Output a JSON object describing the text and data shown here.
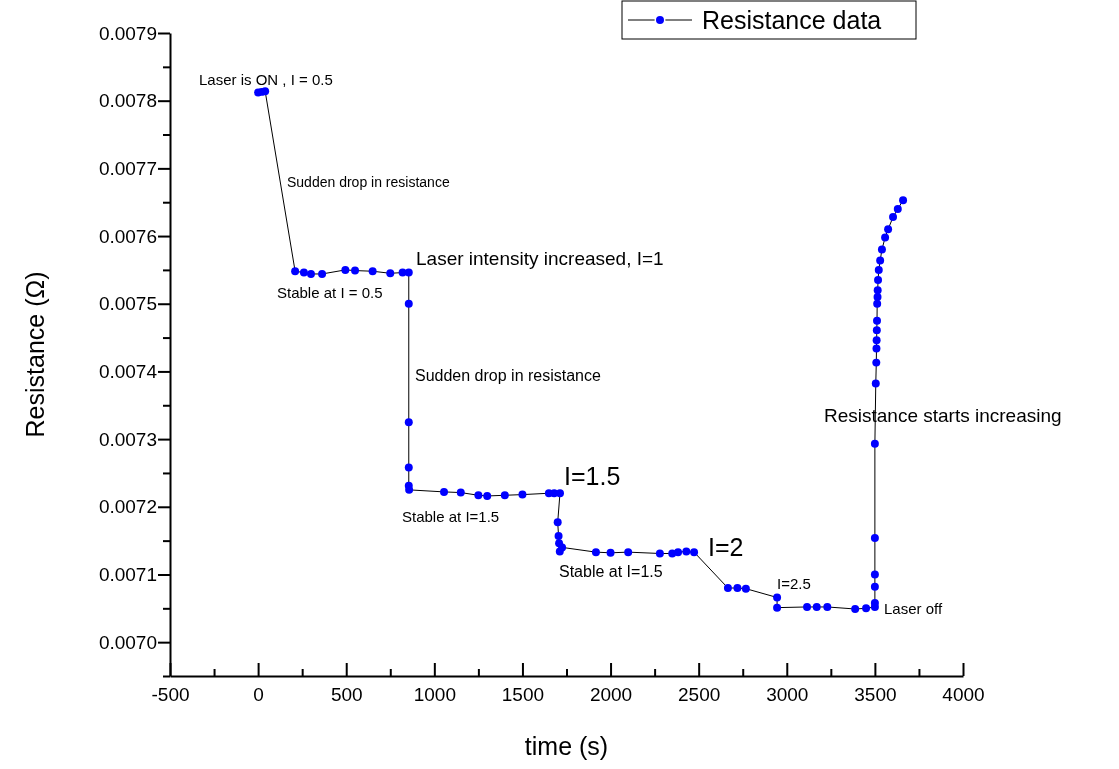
{
  "chart_data": {
    "type": "line",
    "xlabel": "time (s)",
    "ylabel": "Resistance (Ω)",
    "xlim": [
      -500,
      4000
    ],
    "ylim": [
      0.00695,
      0.0079
    ],
    "xticks": [
      -500,
      {
        "value": -250,
        "label": null
      },
      0,
      {
        "value": 250,
        "label": null
      },
      500,
      {
        "value": 750,
        "label": null
      },
      1000,
      {
        "value": 1250,
        "label": null
      },
      1500,
      {
        "value": 1750,
        "label": null
      },
      2000,
      {
        "value": 2250,
        "label": null
      },
      2500,
      {
        "value": 2750,
        "label": null
      },
      3000,
      {
        "value": 3250,
        "label": null
      },
      3500,
      {
        "value": 3750,
        "label": null
      },
      4000
    ],
    "yticks": [
      {
        "value": 0.00695,
        "label": null
      },
      {
        "value": 0.007,
        "label": "0.0070"
      },
      {
        "value": 0.00705,
        "label": null
      },
      0.0071,
      {
        "value": 0.00715,
        "label": null
      },
      0.0072,
      {
        "value": 0.00725,
        "label": null
      },
      0.0073,
      {
        "value": 0.00735,
        "label": null
      },
      0.0074,
      {
        "value": 0.00745,
        "label": null
      },
      0.0075,
      {
        "value": 0.00755,
        "label": null
      },
      0.0076,
      {
        "value": 0.00765,
        "label": null
      },
      0.0077,
      {
        "value": 0.00775,
        "label": null
      },
      0.0078,
      {
        "value": 0.00785,
        "label": null
      },
      0.0079
    ],
    "marker": "circle",
    "line_style": "solid",
    "legend": "top right",
    "grid": false,
    "series": [
      {
        "name": "Resistance data",
        "color": "#0000ff",
        "x": [
          0,
          20,
          40,
          210,
          260,
          300,
          363,
          495,
          550,
          650,
          750,
          820,
          855,
          855,
          855,
          855,
          855,
          857,
          1055,
          1150,
          1250,
          1300,
          1400,
          1500,
          1650,
          1680,
          1713,
          1700,
          1705,
          1708,
          1712,
          1725,
          1917,
          2000,
          2100,
          2280,
          2350,
          2383,
          2430,
          2474,
          2666,
          2720,
          2768,
          2945,
          2945,
          3115,
          3170,
          3230,
          3388,
          3450,
          3500,
          3500,
          3500,
          3500,
          3500,
          3500,
          3505,
          3508,
          3509,
          3510,
          3511,
          3512,
          3513,
          3515,
          3516,
          3518,
          3522,
          3530,
          3540,
          3558,
          3575,
          3603,
          3630,
          3660
        ],
        "values": [
          0.007812,
          0.007813,
          0.007814,
          0.007548,
          0.007546,
          0.007544,
          0.007544,
          0.00755,
          0.007549,
          0.007548,
          0.007545,
          0.007546,
          0.007546,
          0.0075,
          0.007325,
          0.007258,
          0.007231,
          0.007225,
          0.007222,
          0.007221,
          0.007217,
          0.007216,
          0.007217,
          0.007218,
          0.00722,
          0.00722,
          0.00722,
          0.007177,
          0.007157,
          0.007146,
          0.007134,
          0.00714,
          0.007133,
          0.007132,
          0.007133,
          0.007131,
          0.007131,
          0.007133,
          0.007134,
          0.007133,
          0.00708,
          0.00708,
          0.007079,
          0.007066,
          0.007051,
          0.007052,
          0.007052,
          0.007052,
          0.007049,
          0.00705,
          0.007052,
          0.007058,
          0.007082,
          0.0071,
          0.007154,
          0.007293,
          0.007382,
          0.007413,
          0.007434,
          0.007446,
          0.007461,
          0.007475,
          0.0075,
          0.00751,
          0.00752,
          0.007535,
          0.00755,
          0.007564,
          0.00758,
          0.007598,
          0.00761,
          0.007628,
          0.00764,
          0.007653
        ]
      }
    ],
    "annotations": [
      "Laser is ON , I = 0.5",
      "Sudden drop in resistance",
      "Laser intensity increased, I=1",
      "Stable at I = 0.5",
      "Sudden drop in resistance",
      "Stable at I=1.5",
      "I=1.5",
      "Stable at I=1.5",
      "I=2",
      "I=2.5",
      "Laser off",
      "Resistance starts increasing"
    ]
  }
}
